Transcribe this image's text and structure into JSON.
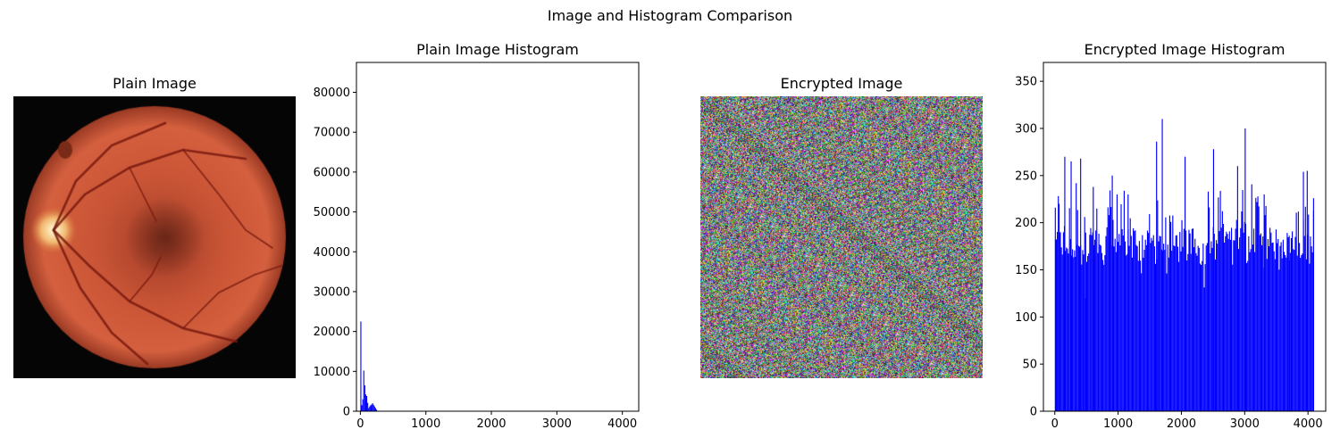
{
  "figure": {
    "suptitle": "Image and Histogram Comparison"
  },
  "plain_image": {
    "title": "Plain Image"
  },
  "encrypted_image": {
    "title": "Encrypted Image"
  },
  "colors": {
    "bar": "#0000ff",
    "fundus_bg": "#050505",
    "fundus_red": "#d0553a"
  },
  "chart_data": [
    {
      "type": "bar",
      "title": "Plain Image Histogram",
      "xlabel": "",
      "ylabel": "",
      "xlim": [
        -60,
        4250
      ],
      "ylim": [
        0,
        87500
      ],
      "xticks": [
        0,
        1000,
        2000,
        3000,
        4000
      ],
      "yticks": [
        0,
        10000,
        20000,
        30000,
        40000,
        50000,
        60000,
        70000,
        80000
      ],
      "bar_color": "#0000ff",
      "bins": [
        {
          "x": 0,
          "y": 22500
        },
        {
          "x": 15,
          "y": 1500
        },
        {
          "x": 30,
          "y": 3000
        },
        {
          "x": 45,
          "y": 10200
        },
        {
          "x": 60,
          "y": 6500
        },
        {
          "x": 75,
          "y": 4200
        },
        {
          "x": 90,
          "y": 3800
        },
        {
          "x": 105,
          "y": 2100
        },
        {
          "x": 120,
          "y": 800
        },
        {
          "x": 135,
          "y": 1200
        },
        {
          "x": 150,
          "y": 1500
        },
        {
          "x": 165,
          "y": 1700
        },
        {
          "x": 180,
          "y": 2000
        },
        {
          "x": 195,
          "y": 1600
        },
        {
          "x": 210,
          "y": 1200
        },
        {
          "x": 225,
          "y": 800
        },
        {
          "x": 240,
          "y": 400
        }
      ]
    },
    {
      "type": "bar",
      "title": "Encrypted Image Histogram",
      "xlabel": "",
      "ylabel": "",
      "xlim": [
        -180,
        4280
      ],
      "ylim": [
        0,
        370
      ],
      "xticks": [
        0,
        1000,
        2000,
        3000,
        4000
      ],
      "yticks": [
        0,
        50,
        100,
        150,
        200,
        250,
        300,
        350
      ],
      "bar_color": "#0000ff",
      "x_range": [
        0,
        4096
      ],
      "baseline_level": 175,
      "notable_bins": [
        {
          "x": 10,
          "y": 182
        },
        {
          "x": 60,
          "y": 220
        },
        {
          "x": 150,
          "y": 270
        },
        {
          "x": 250,
          "y": 265
        },
        {
          "x": 330,
          "y": 242
        },
        {
          "x": 400,
          "y": 268
        },
        {
          "x": 480,
          "y": 120
        },
        {
          "x": 600,
          "y": 238
        },
        {
          "x": 900,
          "y": 250
        },
        {
          "x": 1150,
          "y": 230
        },
        {
          "x": 1600,
          "y": 286
        },
        {
          "x": 1690,
          "y": 310
        },
        {
          "x": 2050,
          "y": 270
        },
        {
          "x": 2500,
          "y": 278
        },
        {
          "x": 2880,
          "y": 260
        },
        {
          "x": 3000,
          "y": 300
        },
        {
          "x": 3300,
          "y": 230
        },
        {
          "x": 3700,
          "y": 160
        },
        {
          "x": 3920,
          "y": 254
        },
        {
          "x": 3980,
          "y": 255
        },
        {
          "x": 4080,
          "y": 226
        }
      ]
    }
  ]
}
